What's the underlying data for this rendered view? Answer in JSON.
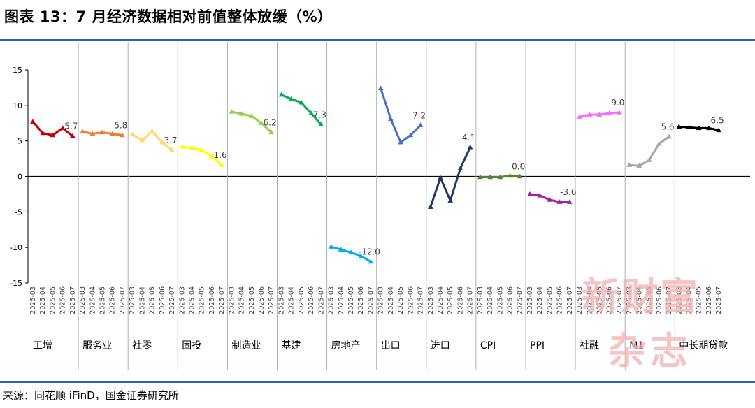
{
  "title": "图表 13：7 月经济数据相对前值整体放缓（%）",
  "source": "来源：同花顺 iFinD，国金证券研究所",
  "watermark": {
    "line1": "新财富",
    "line2": "杂志"
  },
  "chart_data": {
    "type": "line",
    "title": "图表 13：7 月经济数据相对前值整体放缓（%）",
    "ylim": [
      -15,
      15
    ],
    "yticks": [
      15,
      10,
      5,
      0,
      -5,
      -10,
      -15
    ],
    "grid": false,
    "legend": "none",
    "x": [
      "2025-03",
      "2025-04",
      "2025-05",
      "2025-06",
      "2025-07"
    ],
    "groups": [
      {
        "name": "工增",
        "color": "#c00000",
        "values": [
          7.7,
          6.1,
          5.8,
          6.8,
          5.7
        ],
        "label": "5.7"
      },
      {
        "name": "服务业",
        "color": "#ed7d31",
        "values": [
          6.3,
          6.0,
          6.2,
          6.0,
          5.8
        ],
        "label": "5.8"
      },
      {
        "name": "社零",
        "color": "#ffd966",
        "values": [
          5.9,
          5.1,
          6.4,
          4.8,
          3.7
        ],
        "label": "3.7"
      },
      {
        "name": "固投",
        "color": "#ffff00",
        "values": [
          4.2,
          4.0,
          3.7,
          2.8,
          1.6
        ],
        "label": "1.6"
      },
      {
        "name": "制造业",
        "color": "#92d050",
        "values": [
          9.1,
          8.8,
          8.5,
          7.5,
          6.2
        ],
        "label": "6.2"
      },
      {
        "name": "基建",
        "color": "#00b050",
        "values": [
          11.5,
          10.9,
          10.4,
          8.9,
          7.3
        ],
        "label": "7.3"
      },
      {
        "name": "房地产",
        "color": "#00b0f0",
        "values": [
          -9.9,
          -10.3,
          -10.7,
          -11.2,
          -12.0
        ],
        "label": "-12.0"
      },
      {
        "name": "出口",
        "color": "#4472c4",
        "values": [
          12.4,
          8.1,
          4.8,
          5.8,
          7.2
        ],
        "label": "7.2"
      },
      {
        "name": "进口",
        "color": "#1f3864",
        "values": [
          -4.3,
          -0.2,
          -3.4,
          1.1,
          4.1
        ],
        "label": "4.1"
      },
      {
        "name": "CPI",
        "color": "#548235",
        "values": [
          -0.1,
          -0.1,
          -0.1,
          0.1,
          0.0
        ],
        "label": "0.0"
      },
      {
        "name": "PPI",
        "color": "#a020a0",
        "values": [
          -2.5,
          -2.7,
          -3.3,
          -3.6,
          -3.6
        ],
        "label": "-3.6"
      },
      {
        "name": "社融",
        "color": "#ff66ff",
        "values": [
          8.4,
          8.7,
          8.7,
          8.9,
          9.0
        ],
        "label": "9.0"
      },
      {
        "name": "M1",
        "color": "#a6a6a6",
        "values": [
          1.6,
          1.5,
          2.3,
          4.6,
          5.6
        ],
        "label": "5.6"
      },
      {
        "name": "中长期贷款",
        "color": "#000000",
        "values": [
          7.0,
          6.9,
          6.8,
          6.8,
          6.5
        ],
        "label": "6.5"
      }
    ]
  }
}
